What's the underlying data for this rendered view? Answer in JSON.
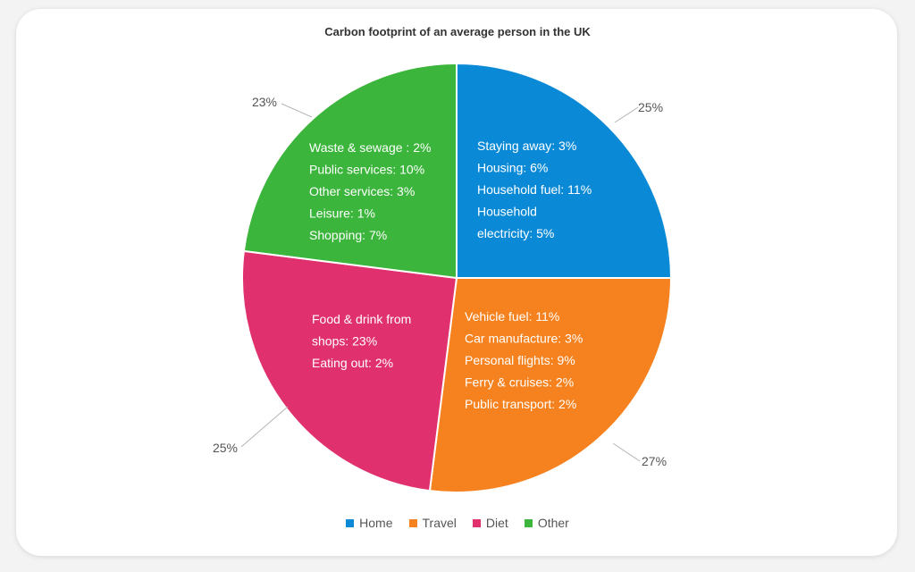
{
  "chart_data": {
    "type": "pie",
    "title": "Carbon footprint of an average person in the UK",
    "legend_placement": "bottom",
    "slices": [
      {
        "name": "Home",
        "value": 25,
        "label": "25%",
        "color": "#0a8ad6",
        "breakdown": [
          "Staying away: 3%",
          "Housing: 6%",
          "Household fuel: 11%",
          "Household",
          "electricity: 5%"
        ]
      },
      {
        "name": "Travel",
        "value": 27,
        "label": "27%",
        "color": "#f5821f",
        "breakdown": [
          "Vehicle fuel: 11%",
          "Car manufacture: 3%",
          "Personal flights: 9%",
          "Ferry & cruises: 2%",
          "Public transport: 2%"
        ]
      },
      {
        "name": "Diet",
        "value": 25,
        "label": "25%",
        "color": "#e0306d",
        "breakdown": [
          "Food & drink from",
          "shops: 23%",
          "Eating out: 2%"
        ]
      },
      {
        "name": "Other",
        "value": 23,
        "label": "23%",
        "color": "#3bb53b",
        "breakdown": [
          "Waste & sewage : 2%",
          "Public services: 10%",
          "Other services: 3%",
          "Leisure: 1%",
          "Shopping: 7%"
        ]
      }
    ]
  }
}
